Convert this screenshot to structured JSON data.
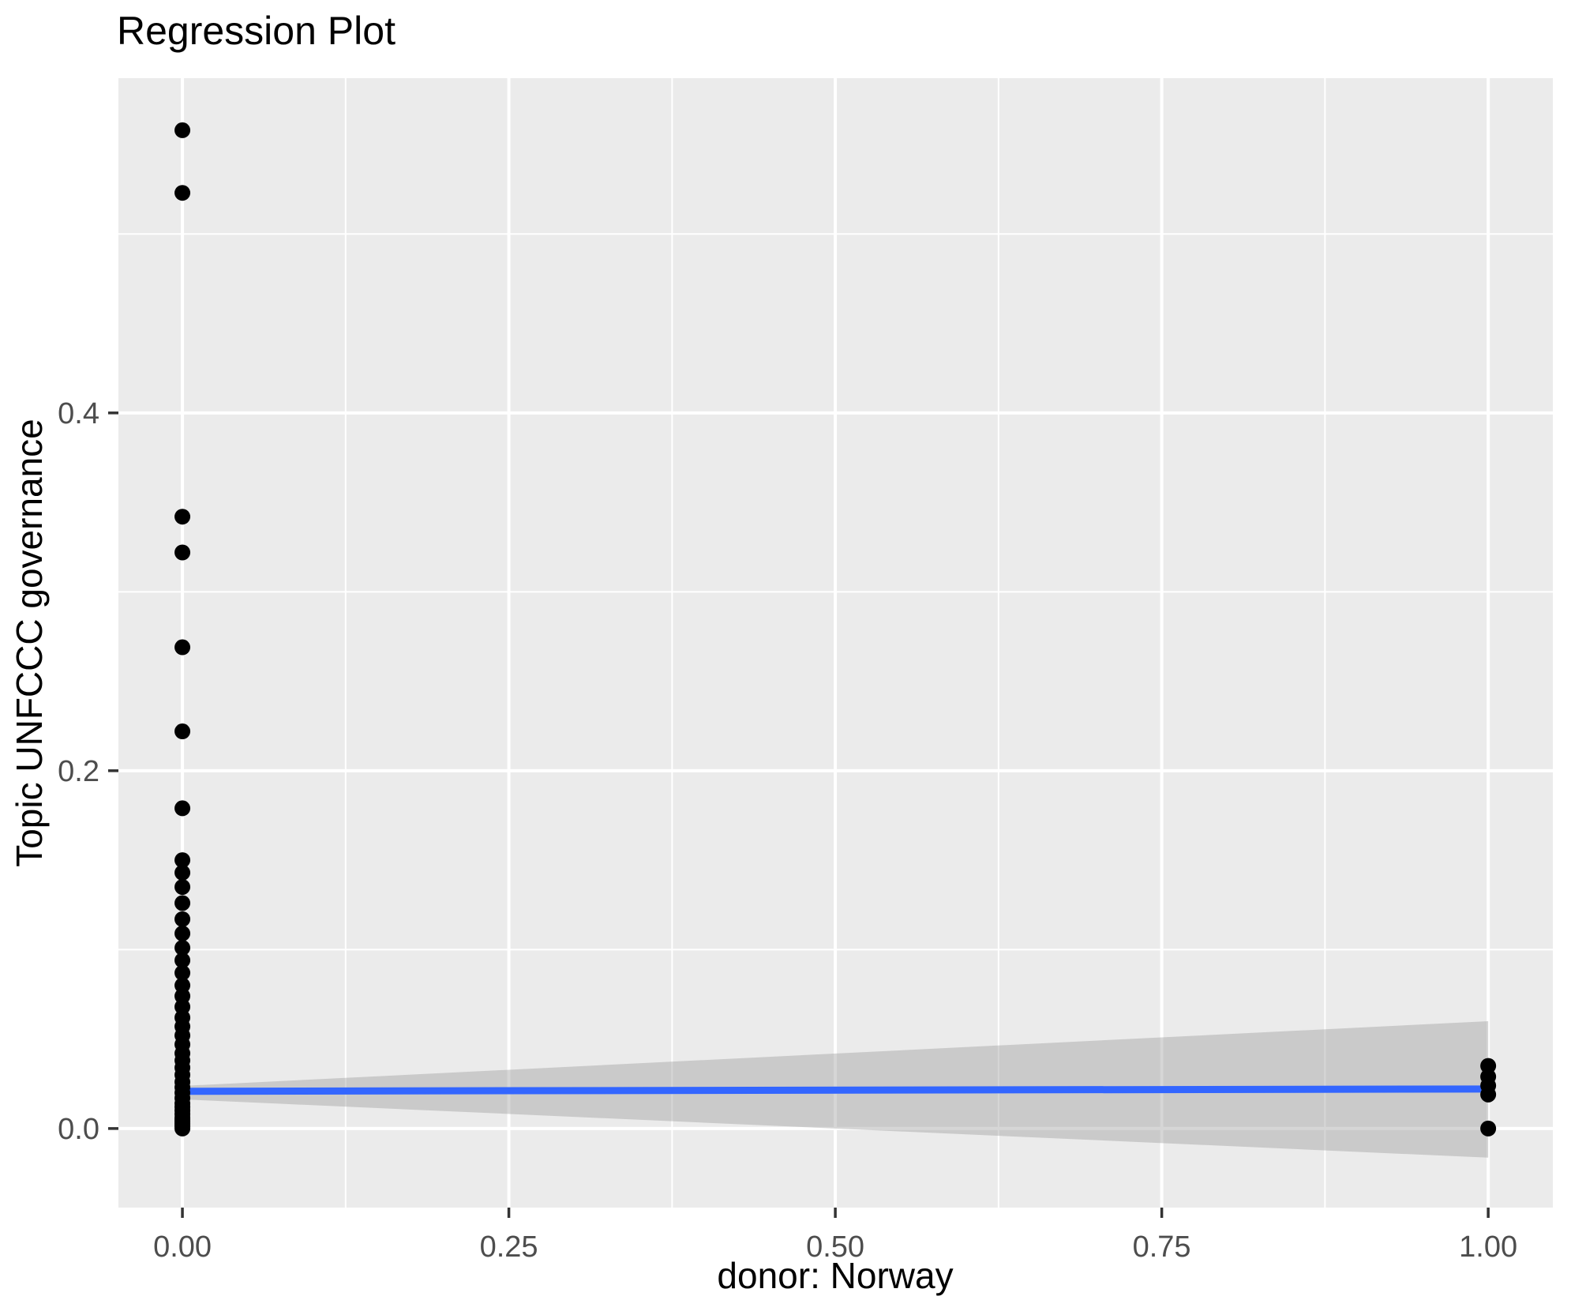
{
  "title": "Regression Plot",
  "axes": {
    "x_label": "donor: Norway",
    "y_label": "Topic UNFCCC governance"
  },
  "colors": {
    "figure_background": "#FFFFFF",
    "panel_background": "#EBEBEB",
    "gridline": "#FFFFFF",
    "point": "#000000",
    "regression_line": "#3366FF",
    "confidence_band": "rgba(153,153,153,0.40)",
    "tick_mark": "#333333",
    "tick_label": "#4D4D4D",
    "title_text": "#000000"
  },
  "chart_data": {
    "type": "scatter",
    "title": "Regression Plot",
    "xlabel": "donor: Norway",
    "ylabel": "Topic UNFCCC governance",
    "xlim": [
      -0.049,
      1.0495
    ],
    "ylim": [
      -0.0442,
      0.5871
    ],
    "grid": true,
    "legend_position": "none",
    "x_ticks": {
      "labels": [
        "0.00",
        "0.25",
        "0.50",
        "0.75",
        "1.00"
      ],
      "values": [
        0,
        0.25,
        0.5,
        0.75,
        1.0
      ]
    },
    "y_ticks": {
      "labels": [
        "0.0",
        "0.2",
        "0.4"
      ],
      "values": [
        0,
        0.2,
        0.4
      ]
    },
    "x_minor": [
      0.125,
      0.375,
      0.625,
      0.875
    ],
    "y_minor": [
      0.1,
      0.3,
      0.5
    ],
    "series": [
      {
        "name": "donor: Norway = 0",
        "x": 0,
        "y": [
          0.558,
          0.523,
          0.342,
          0.322,
          0.269,
          0.222,
          0.179,
          0.15,
          0.143,
          0.135,
          0.126,
          0.117,
          0.109,
          0.101,
          0.094,
          0.087,
          0.08,
          0.074,
          0.068,
          0.062,
          0.057,
          0.052,
          0.047,
          0.042,
          0.038,
          0.034,
          0.03,
          0.026,
          0.023,
          0.02,
          0.017,
          0.014,
          0.012,
          0.01,
          0.008,
          0.006,
          0.005,
          0.004,
          0.003,
          0.002,
          0.001,
          0.0
        ]
      },
      {
        "name": "donor: Norway = 1",
        "x": 1,
        "y": [
          0.035,
          0.029,
          0.024,
          0.019,
          0.0
        ]
      }
    ],
    "regression_line": {
      "x0": 0,
      "y0": 0.0208,
      "x1": 1,
      "y1": 0.0221
    },
    "confidence_band": {
      "x0": 0,
      "upper0": 0.0238,
      "lower0": 0.0163,
      "x1": 1,
      "upper1": 0.06,
      "lower1": -0.0163
    },
    "point_radius_px": 10
  }
}
